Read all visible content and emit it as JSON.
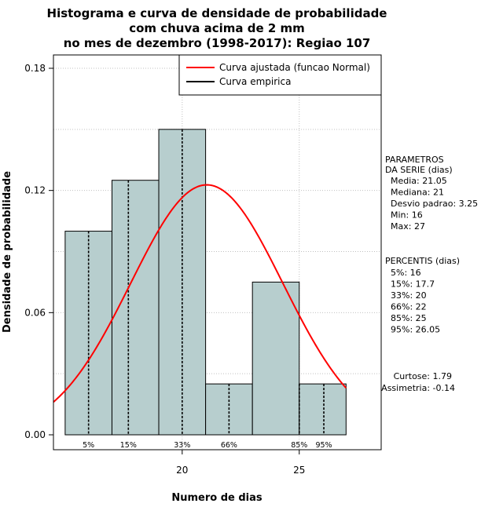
{
  "chart_data": {
    "type": "bar",
    "title_lines": [
      "Histograma e curva de densidade de probabilidade",
      "com chuva acima de 2 mm",
      "no mes de dezembro (1998-2017): Regiao 107"
    ],
    "xlabel": "Numero de dias",
    "ylabel": "Densidade de probabilidade",
    "xlim": [
      14.5,
      28.5
    ],
    "ylim": [
      0.0,
      0.18
    ],
    "x_ticks": [
      20,
      25
    ],
    "y_ticks": [
      0.0,
      0.06,
      0.12,
      0.18
    ],
    "y_tick_labels": [
      "0.00",
      "0.06",
      "0.12",
      "0.18"
    ],
    "grid": true,
    "bins": [
      {
        "start": 15,
        "end": 17,
        "density": 0.1
      },
      {
        "start": 17,
        "end": 19,
        "density": 0.125
      },
      {
        "start": 19,
        "end": 21,
        "density": 0.15
      },
      {
        "start": 21,
        "end": 23,
        "density": 0.025
      },
      {
        "start": 23,
        "end": 25,
        "density": 0.075
      },
      {
        "start": 25,
        "end": 27,
        "density": 0.025
      }
    ],
    "bar_color": "#b7cece",
    "curve_color": "#ff0000",
    "fitted_curve": {
      "name": "Curva ajustada (funcao Normal)",
      "mean": 21.05,
      "sd": 3.25,
      "x_range": [
        14.5,
        27
      ]
    },
    "empirical_curve": {
      "name": "Curva empirica"
    },
    "legend_position": "top-right",
    "percentile_lines": [
      {
        "label": "5%",
        "x": 16
      },
      {
        "label": "15%",
        "x": 17.7
      },
      {
        "label": "33%",
        "x": 20
      },
      {
        "label": "66%",
        "x": 22
      },
      {
        "label": "85%",
        "x": 25
      },
      {
        "label": "95%",
        "x": 26.05
      }
    ],
    "parametros": {
      "heading": [
        "PARAMETROS",
        "DA SERIE (dias)"
      ],
      "lines": [
        "Media: 21.05",
        "Mediana: 21",
        "Desvio padrao: 3.25",
        "Min: 16",
        "Max: 27"
      ]
    },
    "percentis": {
      "heading": "PERCENTIS (dias)",
      "lines": [
        "5%: 16",
        "15%: 17.7",
        "33%: 20",
        "66%: 22",
        "85%: 25",
        "95%: 26.05"
      ]
    },
    "stats": [
      "Curtose: 1.79",
      "Assimetria: -0.14"
    ]
  }
}
